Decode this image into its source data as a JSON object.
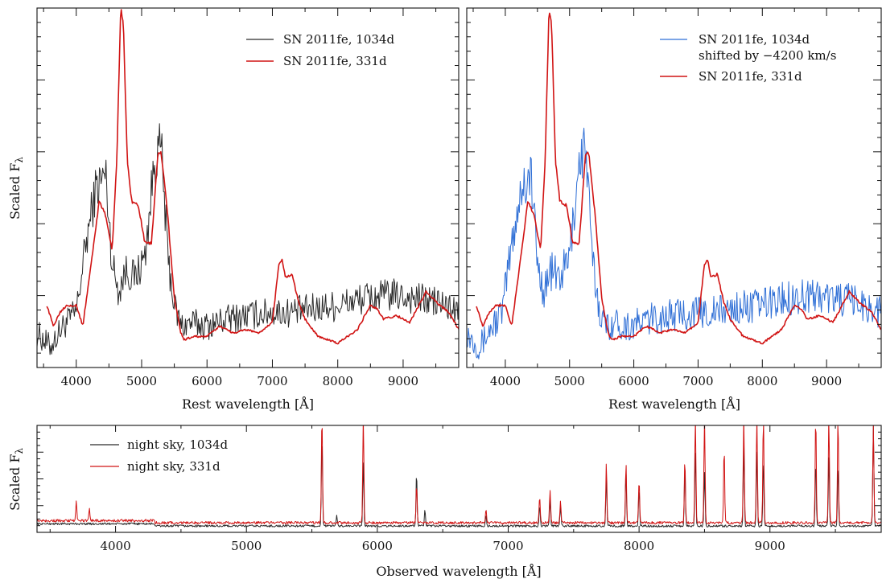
{
  "colors": {
    "black": "#2b2b2b",
    "red": "#d11414",
    "blue": "#2f6fd6"
  },
  "chart_data": [
    {
      "type": "line",
      "panel": "top-left",
      "xlabel": "Rest wavelength [Å]",
      "ylabel": "Scaled F",
      "ylabel_sub": "λ",
      "xlim": [
        3400,
        9850
      ],
      "ylim": [
        0,
        5.2
      ],
      "xticks": [
        4000,
        5000,
        6000,
        7000,
        8000,
        9000
      ],
      "legend_position": "top-right",
      "series": [
        {
          "name": "SN 2011fe, 1034d",
          "color": "#2b2b2b",
          "noise": 0.28,
          "x": [
            3400,
            3600,
            3800,
            4000,
            4150,
            4300,
            4450,
            4550,
            4650,
            4750,
            4900,
            5050,
            5200,
            5300,
            5400,
            5500,
            5600,
            5750,
            6000,
            6300,
            6600,
            7000,
            7300,
            7600,
            8000,
            8400,
            8800,
            9200,
            9500,
            9850
          ],
          "y": [
            0.5,
            0.3,
            0.6,
            0.8,
            1.8,
            2.6,
            2.8,
            1.5,
            1.1,
            1.4,
            1.3,
            1.6,
            3.0,
            3.2,
            1.6,
            0.9,
            0.6,
            0.65,
            0.6,
            0.7,
            0.75,
            0.8,
            0.8,
            0.85,
            0.9,
            1.0,
            1.05,
            1.0,
            0.95,
            0.8
          ]
        },
        {
          "name": "SN 2011fe, 331d",
          "color": "#d11414",
          "noise": 0.02,
          "x": [
            3550,
            3650,
            3750,
            3850,
            4000,
            4100,
            4200,
            4350,
            4450,
            4550,
            4620,
            4680,
            4720,
            4780,
            4850,
            4950,
            5050,
            5150,
            5250,
            5300,
            5400,
            5500,
            5600,
            5650,
            5800,
            6000,
            6200,
            6400,
            6600,
            6800,
            7000,
            7100,
            7150,
            7200,
            7300,
            7400,
            7500,
            7700,
            8000,
            8300,
            8500,
            8600,
            8700,
            8900,
            9100,
            9300,
            9350,
            9500,
            9700,
            9850
          ],
          "y": [
            0.9,
            0.6,
            0.8,
            0.9,
            0.9,
            0.6,
            1.3,
            2.4,
            2.2,
            1.7,
            3.0,
            5.2,
            5.0,
            3.0,
            2.4,
            2.35,
            1.8,
            1.8,
            3.1,
            3.1,
            2.2,
            1.0,
            0.5,
            0.4,
            0.45,
            0.45,
            0.6,
            0.5,
            0.55,
            0.5,
            0.65,
            1.5,
            1.55,
            1.3,
            1.35,
            0.95,
            0.7,
            0.45,
            0.35,
            0.55,
            0.9,
            0.85,
            0.7,
            0.75,
            0.65,
            1.0,
            1.1,
            0.95,
            0.8,
            0.55
          ]
        }
      ]
    },
    {
      "type": "line",
      "panel": "top-right",
      "xlabel": "Rest wavelength [Å]",
      "xlim": [
        3400,
        9850
      ],
      "ylim": [
        0,
        5.2
      ],
      "xticks": [
        4000,
        5000,
        6000,
        7000,
        8000,
        9000
      ],
      "legend_position": "top-right",
      "series": [
        {
          "name": "SN 2011fe, 1034d",
          "name_line2": "shifted by −4200 km/s",
          "color": "#2f6fd6",
          "noise": 0.3,
          "x": [
            3400,
            3600,
            3800,
            3950,
            4100,
            4250,
            4400,
            4500,
            4600,
            4700,
            4850,
            5000,
            5150,
            5250,
            5350,
            5450,
            5550,
            5700,
            5950,
            6250,
            6550,
            6950,
            7250,
            7550,
            7950,
            8350,
            8750,
            9150,
            9450,
            9850
          ],
          "y": [
            0.5,
            0.3,
            0.6,
            0.8,
            1.8,
            2.6,
            2.8,
            1.5,
            1.1,
            1.4,
            1.3,
            1.6,
            3.0,
            3.2,
            1.6,
            0.9,
            0.6,
            0.65,
            0.6,
            0.7,
            0.75,
            0.8,
            0.8,
            0.85,
            0.9,
            1.0,
            1.05,
            1.0,
            0.95,
            0.8
          ]
        },
        {
          "name": "SN 2011fe, 331d",
          "color": "#d11414",
          "noise": 0.02,
          "x": [
            3550,
            3650,
            3750,
            3850,
            4000,
            4100,
            4200,
            4350,
            4450,
            4550,
            4620,
            4680,
            4720,
            4780,
            4850,
            4950,
            5050,
            5150,
            5250,
            5300,
            5400,
            5500,
            5600,
            5650,
            5800,
            6000,
            6200,
            6400,
            6600,
            6800,
            7000,
            7100,
            7150,
            7200,
            7300,
            7400,
            7500,
            7700,
            8000,
            8300,
            8500,
            8600,
            8700,
            8900,
            9100,
            9300,
            9350,
            9500,
            9700,
            9850
          ],
          "y": [
            0.9,
            0.6,
            0.8,
            0.9,
            0.9,
            0.6,
            1.3,
            2.4,
            2.2,
            1.7,
            3.0,
            5.2,
            5.0,
            3.0,
            2.4,
            2.35,
            1.8,
            1.8,
            3.1,
            3.1,
            2.2,
            1.0,
            0.5,
            0.4,
            0.45,
            0.45,
            0.6,
            0.5,
            0.55,
            0.5,
            0.65,
            1.5,
            1.55,
            1.3,
            1.35,
            0.95,
            0.7,
            0.45,
            0.35,
            0.55,
            0.9,
            0.85,
            0.7,
            0.75,
            0.65,
            1.0,
            1.1,
            0.95,
            0.8,
            0.55
          ]
        }
      ]
    },
    {
      "type": "line",
      "panel": "bottom",
      "xlabel": "Observed wavelength [Å]",
      "ylabel": "Scaled F",
      "ylabel_sub": "λ",
      "xlim": [
        3400,
        9850
      ],
      "ylim": [
        0,
        1.0
      ],
      "xticks": [
        4000,
        5000,
        6000,
        7000,
        8000,
        9000
      ],
      "legend_position": "top-left",
      "series": [
        {
          "name": "night sky, 1034d",
          "color": "#2b2b2b",
          "baseline": 0.06,
          "noise": 0.01,
          "lines": [
            [
              5577,
              0.85
            ],
            [
              5690,
              0.1
            ],
            [
              5893,
              0.6
            ],
            [
              6300,
              0.5
            ],
            [
              6364,
              0.15
            ],
            [
              6830,
              0.1
            ],
            [
              7240,
              0.2
            ],
            [
              7320,
              0.25
            ],
            [
              7400,
              0.18
            ],
            [
              7750,
              0.45
            ],
            [
              7900,
              0.5
            ],
            [
              8000,
              0.35
            ],
            [
              8350,
              0.55
            ],
            [
              8430,
              0.7
            ],
            [
              8500,
              0.5
            ],
            [
              8800,
              0.75
            ],
            [
              8900,
              0.7
            ],
            [
              8950,
              0.6
            ],
            [
              9350,
              0.6
            ],
            [
              9450,
              0.65
            ],
            [
              9520,
              0.55
            ],
            [
              9790,
              0.95
            ]
          ]
        },
        {
          "name": "night sky, 331d",
          "color": "#d11414",
          "baseline": 0.09,
          "noise": 0.012,
          "lines": [
            [
              3700,
              0.18
            ],
            [
              3800,
              0.12
            ],
            [
              5577,
              1.0
            ],
            [
              5893,
              1.0
            ],
            [
              6300,
              0.35
            ],
            [
              6830,
              0.12
            ],
            [
              7240,
              0.25
            ],
            [
              7320,
              0.3
            ],
            [
              7400,
              0.2
            ],
            [
              7750,
              0.55
            ],
            [
              7900,
              0.55
            ],
            [
              8000,
              0.4
            ],
            [
              8350,
              0.6
            ],
            [
              8430,
              1.0
            ],
            [
              8500,
              1.0
            ],
            [
              8650,
              0.7
            ],
            [
              8800,
              1.0
            ],
            [
              8900,
              1.0
            ],
            [
              8950,
              1.0
            ],
            [
              9350,
              1.0
            ],
            [
              9450,
              1.0
            ],
            [
              9520,
              1.0
            ],
            [
              9790,
              0.9
            ]
          ]
        }
      ]
    }
  ]
}
